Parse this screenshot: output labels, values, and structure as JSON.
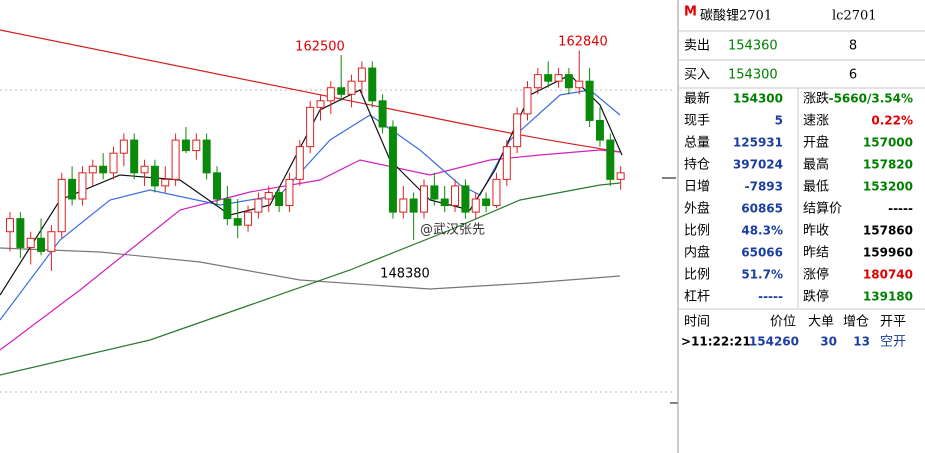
{
  "header": {
    "marker": "M",
    "title": "碳酸锂2701",
    "code": "lc2701"
  },
  "chart": {
    "ylim": [
      132100,
      166700
    ],
    "annotations": [
      "162500",
      "162840",
      "148380"
    ],
    "watermark": "@武汉张先",
    "candles": [
      [
        149000,
        150500,
        147500,
        150000
      ],
      [
        150000,
        150500,
        147000,
        147800
      ],
      [
        147800,
        149000,
        146500,
        148500
      ],
      [
        148500,
        150000,
        147200,
        147500
      ],
      [
        147500,
        149500,
        146000,
        149000
      ],
      [
        149000,
        153500,
        148500,
        153000
      ],
      [
        153000,
        154000,
        151000,
        151500
      ],
      [
        151500,
        154000,
        151000,
        153500
      ],
      [
        153500,
        154500,
        152500,
        154000
      ],
      [
        154000,
        155000,
        153000,
        153500
      ],
      [
        153500,
        155500,
        153000,
        155000
      ],
      [
        155000,
        156500,
        154000,
        156000
      ],
      [
        156000,
        156500,
        153000,
        153500
      ],
      [
        153500,
        154500,
        152500,
        154000
      ],
      [
        154000,
        154500,
        152000,
        152500
      ],
      [
        152500,
        154000,
        152000,
        153000
      ],
      [
        153000,
        156500,
        152500,
        156000
      ],
      [
        156000,
        157000,
        155000,
        155200
      ],
      [
        155200,
        156500,
        154500,
        156000
      ],
      [
        156000,
        156500,
        153000,
        153500
      ],
      [
        153500,
        154000,
        151000,
        151500
      ],
      [
        151500,
        152500,
        149500,
        150000
      ],
      [
        150000,
        151500,
        148500,
        149500
      ],
      [
        149500,
        151000,
        149000,
        150500
      ],
      [
        150500,
        152000,
        150000,
        151500
      ],
      [
        151500,
        152500,
        150500,
        152000
      ],
      [
        152000,
        152500,
        150500,
        151000
      ],
      [
        151000,
        153500,
        150500,
        153000
      ],
      [
        153000,
        156000,
        152500,
        155500
      ],
      [
        155500,
        159000,
        155000,
        158500
      ],
      [
        158500,
        159500,
        157500,
        159000
      ],
      [
        159000,
        160500,
        158000,
        160000
      ],
      [
        160000,
        162500,
        159000,
        159500
      ],
      [
        159500,
        161000,
        158500,
        160500
      ],
      [
        160500,
        162000,
        159500,
        161500
      ],
      [
        161500,
        162000,
        158500,
        159000
      ],
      [
        159000,
        159500,
        156500,
        157000
      ],
      [
        157000,
        157500,
        150000,
        150500
      ],
      [
        150500,
        152500,
        150000,
        151500
      ],
      [
        151500,
        152000,
        148380,
        150500
      ],
      [
        150500,
        153000,
        150000,
        152500
      ],
      [
        152500,
        153500,
        151000,
        151500
      ],
      [
        151500,
        152500,
        150500,
        151000
      ],
      [
        151000,
        153000,
        150500,
        152500
      ],
      [
        152500,
        153000,
        150000,
        150500
      ],
      [
        150500,
        152000,
        150000,
        151500
      ],
      [
        151500,
        152000,
        150500,
        151000
      ],
      [
        151000,
        153500,
        150800,
        153000
      ],
      [
        153000,
        156000,
        152500,
        155500
      ],
      [
        155500,
        158500,
        155000,
        158000
      ],
      [
        158000,
        160500,
        157500,
        160000
      ],
      [
        160000,
        161500,
        159500,
        161000
      ],
      [
        161000,
        162000,
        160000,
        160500
      ],
      [
        160500,
        161500,
        160000,
        161000
      ],
      [
        161000,
        161500,
        159500,
        160000
      ],
      [
        160000,
        162840,
        159500,
        160500
      ],
      [
        160500,
        161500,
        157000,
        157500
      ],
      [
        157500,
        158500,
        155500,
        156000
      ],
      [
        156000,
        156500,
        152500,
        153000
      ],
      [
        153000,
        154000,
        152200,
        153500
      ]
    ]
  },
  "orderbook": [
    [
      "卖出",
      "154360",
      "8"
    ],
    [
      "买入",
      "154300",
      "6"
    ]
  ],
  "quote": [
    [
      "最新",
      "154300",
      "涨跌",
      "-5660/3.54%"
    ],
    [
      "现手",
      "5",
      "速涨",
      "0.22%"
    ],
    [
      "总量",
      "125931",
      "开盘",
      "157000"
    ],
    [
      "持仓",
      "397024",
      "最高",
      "157820"
    ],
    [
      "日增",
      "-7893",
      "最低",
      "153200"
    ],
    [
      "外盘",
      "60865",
      "结算价",
      "-----"
    ],
    [
      "比例",
      "48.3%",
      "昨收",
      "157860"
    ],
    [
      "内盘",
      "65066",
      "昨结",
      "159960"
    ],
    [
      "比例",
      "51.7%",
      "涨停",
      "180740"
    ],
    [
      "杠杆",
      "-----",
      "跌停",
      "139180"
    ]
  ],
  "trades": {
    "header": [
      "时间",
      "价位",
      "大单",
      "增仓",
      "开平"
    ],
    "rows": [
      [
        ">11:22:21",
        "154260",
        "30",
        "13",
        "空开"
      ]
    ]
  }
}
